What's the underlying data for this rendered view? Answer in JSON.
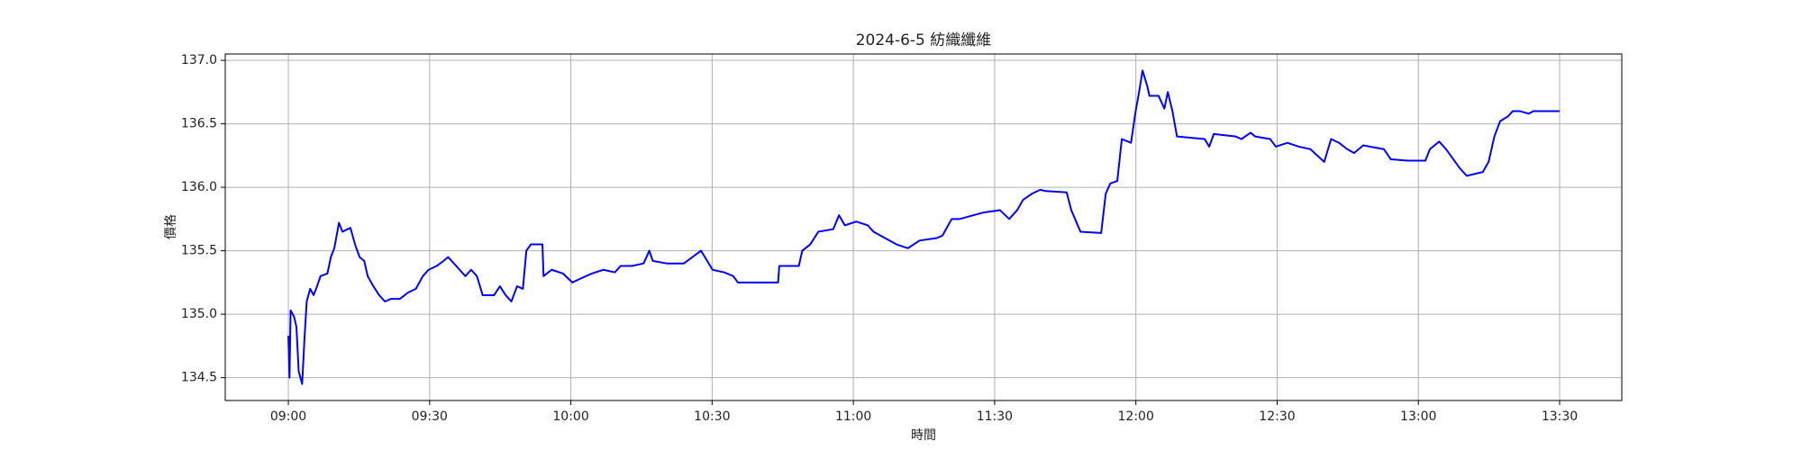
{
  "chart_data": {
    "type": "line",
    "title": "2024-6-5 紡織纖維",
    "x_label": "時間",
    "y_label": "價格",
    "x": [
      "09:00:00",
      "09:00:15",
      "09:00:29",
      "09:01:13",
      "09:01:43",
      "09:02:12",
      "09:02:56",
      "09:03:25",
      "09:03:54",
      "09:04:38",
      "09:05:22",
      "09:06:06",
      "09:06:50",
      "09:08:18",
      "09:09:02",
      "09:09:46",
      "09:10:45",
      "09:11:29",
      "09:13:11",
      "09:14:10",
      "09:15:08",
      "09:16:07",
      "09:16:51",
      "09:18:04",
      "09:19:17",
      "09:20:31",
      "09:21:44",
      "09:23:41",
      "09:25:24",
      "09:27:06",
      "09:28:34",
      "09:29:47",
      "09:31:30",
      "09:32:58",
      "09:33:56",
      "09:35:10",
      "09:36:23",
      "09:37:36",
      "09:38:49",
      "09:40:03",
      "09:41:16",
      "09:43:42",
      "09:44:56",
      "09:46:09",
      "09:47:22",
      "09:48:35",
      "09:49:49",
      "09:50:33",
      "09:51:31",
      "09:53:58",
      "09:54:12",
      "09:55:55",
      "09:58:21",
      "10:00:19",
      "10:02:01",
      "10:04:28",
      "10:06:54",
      "10:09:21",
      "10:10:34",
      "10:13:00",
      "10:15:27",
      "10:16:40",
      "10:17:24",
      "10:20:20",
      "10:24:00",
      "10:27:39",
      "10:30:06",
      "10:32:32",
      "10:34:30",
      "10:35:28",
      "10:39:52",
      "10:44:01",
      "10:44:16",
      "10:48:25",
      "10:49:09",
      "10:50:51",
      "10:52:34",
      "10:55:44",
      "10:56:57",
      "10:58:11",
      "11:00:37",
      "11:03:04",
      "11:04:17",
      "11:06:43",
      "11:09:10",
      "11:11:36",
      "11:14:03",
      "11:17:43",
      "11:18:56",
      "11:20:53",
      "11:22:36",
      "11:27:29",
      "11:31:08",
      "11:33:06",
      "11:34:48",
      "11:36:01",
      "11:37:58",
      "11:39:41",
      "11:40:54",
      "11:45:18",
      "11:46:17",
      "11:48:14",
      "11:52:38",
      "11:53:36",
      "11:54:35",
      "11:56:03",
      "11:57:01",
      "11:58:58",
      "11:59:57",
      "12:00:41",
      "12:01:25",
      "12:02:24",
      "12:02:53",
      "12:04:50",
      "12:06:03",
      "12:06:47",
      "12:07:46",
      "12:08:44",
      "12:14:36",
      "12:15:35",
      "12:16:33",
      "12:21:12",
      "12:22:25",
      "12:24:22",
      "12:25:21",
      "12:28:31",
      "12:29:44",
      "12:32:11",
      "12:34:37",
      "12:37:04",
      "12:40:00",
      "12:41:28",
      "12:43:10",
      "12:44:53",
      "12:46:21",
      "12:48:18",
      "12:52:41",
      "12:54:09",
      "12:57:49",
      "13:01:29",
      "13:02:27",
      "13:04:25",
      "13:05:53",
      "13:06:51",
      "13:08:48",
      "13:10:16",
      "13:13:41",
      "13:14:55",
      "13:16:08",
      "13:17:21",
      "13:19:04",
      "13:20:03",
      "13:21:30",
      "13:23:27",
      "13:24:26",
      "13:30:00"
    ],
    "series": [
      {
        "color": "#0000ff",
        "values": [
          134.83,
          134.5,
          135.03,
          134.98,
          134.9,
          134.55,
          134.45,
          134.8,
          135.1,
          135.2,
          135.15,
          135.22,
          135.3,
          135.32,
          135.45,
          135.52,
          135.72,
          135.65,
          135.68,
          135.55,
          135.45,
          135.42,
          135.3,
          135.22,
          135.15,
          135.1,
          135.12,
          135.12,
          135.17,
          135.2,
          135.3,
          135.35,
          135.38,
          135.42,
          135.45,
          135.4,
          135.35,
          135.3,
          135.35,
          135.3,
          135.15,
          135.15,
          135.22,
          135.15,
          135.1,
          135.22,
          135.2,
          135.5,
          135.55,
          135.55,
          135.3,
          135.35,
          135.32,
          135.25,
          135.28,
          135.32,
          135.35,
          135.33,
          135.38,
          135.38,
          135.4,
          135.5,
          135.42,
          135.4,
          135.4,
          135.5,
          135.35,
          135.33,
          135.3,
          135.25,
          135.25,
          135.25,
          135.38,
          135.38,
          135.5,
          135.55,
          135.65,
          135.67,
          135.78,
          135.7,
          135.73,
          135.7,
          135.65,
          135.6,
          135.55,
          135.52,
          135.58,
          135.6,
          135.62,
          135.75,
          135.75,
          135.8,
          135.82,
          135.75,
          135.82,
          135.9,
          135.95,
          135.98,
          135.97,
          135.96,
          135.82,
          135.65,
          135.64,
          135.95,
          136.03,
          136.05,
          136.38,
          136.35,
          136.6,
          136.75,
          136.92,
          136.8,
          136.72,
          136.72,
          136.62,
          136.75,
          136.6,
          136.4,
          136.38,
          136.32,
          136.42,
          136.4,
          136.38,
          136.43,
          136.4,
          136.38,
          136.32,
          136.35,
          136.32,
          136.3,
          136.2,
          136.38,
          136.35,
          136.3,
          136.27,
          136.33,
          136.3,
          136.22,
          136.21,
          136.21,
          136.3,
          136.36,
          136.3,
          136.25,
          136.15,
          136.09,
          136.12,
          136.2,
          136.4,
          136.52,
          136.56,
          136.6,
          136.6,
          136.58,
          136.6,
          136.6
        ]
      }
    ],
    "xlim": [
      "08:46:36",
      "13:43:12"
    ],
    "xticks": [
      "09:00",
      "09:30",
      "10:00",
      "10:30",
      "11:00",
      "11:30",
      "12:00",
      "12:30",
      "13:00",
      "13:30"
    ],
    "ylim": [
      134.32,
      137.05
    ],
    "yticks": [
      134.5,
      {
        "value": 135,
        "label": "135.0"
      },
      135.5,
      {
        "value": 136,
        "label": "136.0"
      },
      136.5,
      {
        "value": 137,
        "label": "137.0"
      }
    ],
    "grid": true
  }
}
